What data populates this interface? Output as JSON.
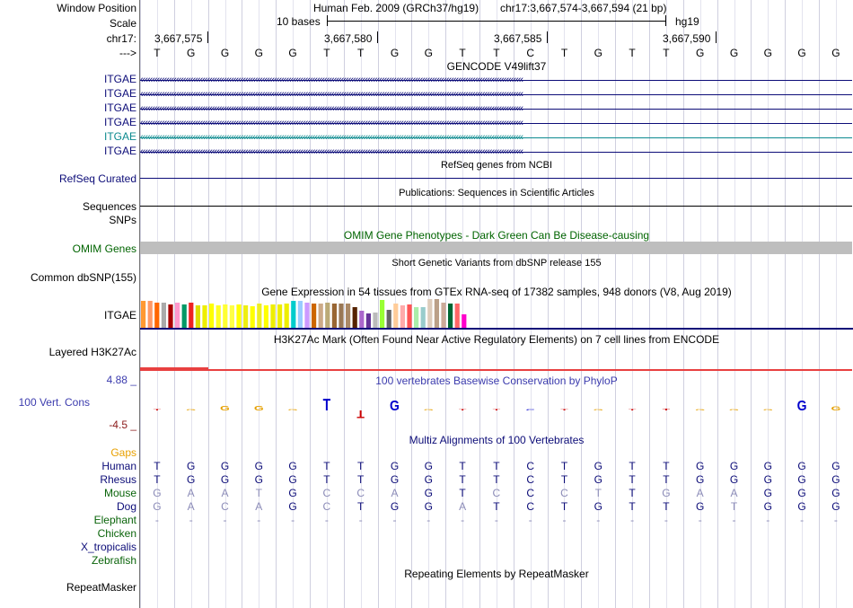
{
  "labels": {
    "window_position": "Window Position",
    "scale": "Scale",
    "chrom": "chr17:",
    "strand": "--->",
    "refseq": "RefSeq Curated",
    "sequences": "Sequences",
    "snps": "SNPs",
    "omim": "OMIM Genes",
    "common_dbsnp": "Common dbSNP(155)",
    "itgae_expr": "ITGAE",
    "h3k27ac": "Layered H3K27Ac",
    "cons_max": "4.88 _",
    "cons_label": "100 Vert. Cons",
    "cons_min": "-4.5 _",
    "gaps": "Gaps",
    "repeatmasker": "RepeatMasker"
  },
  "header": {
    "assembly": "Human Feb. 2009 (GRCh37/hg19)",
    "position": "chr17:3,667,574-3,667,594 (21 bp)",
    "scale_text": "10 bases",
    "db": "hg19",
    "ticks": [
      "3,667,575",
      "3,667,580",
      "3,667,585",
      "3,667,590"
    ]
  },
  "sequence": [
    "T",
    "G",
    "G",
    "G",
    "G",
    "T",
    "T",
    "G",
    "G",
    "T",
    "T",
    "C",
    "T",
    "G",
    "T",
    "T",
    "G",
    "G",
    "G",
    "G",
    "G"
  ],
  "gencode": {
    "title": "GENCODE V49lift37",
    "transcripts": [
      {
        "name": "ITGAE",
        "color": "#0c0c78"
      },
      {
        "name": "ITGAE",
        "color": "#0c0c78"
      },
      {
        "name": "ITGAE",
        "color": "#0c0c78"
      },
      {
        "name": "ITGAE",
        "color": "#0c0c78"
      },
      {
        "name": "ITGAE",
        "color": "#0c8a8f"
      },
      {
        "name": "ITGAE",
        "color": "#0c0c78"
      }
    ]
  },
  "tracks": {
    "refseq_title": "RefSeq genes from NCBI",
    "publications_title": "Publications: Sequences in Scientific Articles",
    "omim_title": "OMIM Gene Phenotypes - Dark Green Can Be Disease-causing",
    "dbsnp_title": "Short Genetic Variants from dbSNP release 155",
    "gtex_title": "Gene Expression in 54 tissues from GTEx RNA-seq of 17382 samples, 948 donors (V8, Aug 2019)",
    "h3k27ac_title": "H3K27Ac Mark (Often Found Near Active Regulatory Elements) on 7 cell lines from ENCODE",
    "phylop_title": "100 vertebrates Basewise Conservation by PhyloP",
    "multiz_title": "Multiz Alignments of 100 Vertebrates",
    "repeat_title": "Repeating Elements by RepeatMasker"
  },
  "colors": {
    "navy": "#0c0c78",
    "teal": "#0c8a8f",
    "omim_green": "#006400",
    "omim_bar": "#bebebe",
    "gaps_orange": "#e8a000",
    "cons_blue": "#3c3cae",
    "cons_red": "#8b1a1a",
    "h3k27ac_red": "#e84040",
    "species_green": "#0a640a",
    "species_navy": "#0c0c78",
    "repeat_red": "#c84040"
  },
  "gtex": {
    "colors": [
      "#ff9933",
      "#ff9966",
      "#ff6600",
      "#aaaaaa",
      "#aa0000",
      "#ff99cc",
      "#009966",
      "#ee2222",
      "#dddd00",
      "#eeee00",
      "#ffff00",
      "#ffff22",
      "#ffff33",
      "#ffff44",
      "#ffff00",
      "#eeee11",
      "#ffff00",
      "#eeee22",
      "#ffff00",
      "#eeee00",
      "#eeee00",
      "#eeee00",
      "#00cccc",
      "#99ccff",
      "#cc99ff",
      "#cc6600",
      "#ccaa88",
      "#bbaa77",
      "#996633",
      "#997755",
      "#aa8866",
      "#552200",
      "#aa66cc",
      "#663399",
      "#bbbbbb",
      "#99ff33",
      "#666666",
      "#ffcc99",
      "#ffaaaa",
      "#ff5555",
      "#aaeeaa",
      "#99cccc",
      "#ddccbb",
      "#bba088",
      "#ccaa99",
      "#006633",
      "#ff6666",
      "#ff00cc"
    ],
    "values": [
      30,
      30,
      28,
      28,
      26,
      28,
      26,
      28,
      25,
      25,
      27,
      25,
      26,
      25,
      26,
      25,
      24,
      27,
      25,
      26,
      26,
      27,
      30,
      30,
      28,
      27,
      27,
      28,
      27,
      27,
      27,
      23,
      19,
      16,
      17,
      31,
      20,
      27,
      25,
      26,
      23,
      23,
      32,
      32,
      28,
      27,
      27,
      15
    ]
  },
  "phylop_scores": [
    0.1,
    0.1,
    0.5,
    0.5,
    0.1,
    1.2,
    -0.8,
    1.0,
    0.0,
    0.05,
    0.0,
    0.0,
    0.05,
    0.1,
    0.1,
    0.2,
    0.05,
    0.05,
    0.1,
    1.0,
    0.4
  ],
  "multiz": {
    "species": [
      {
        "name": "Human",
        "color": "#0c0c78",
        "bases": [
          "T",
          "G",
          "G",
          "G",
          "G",
          "T",
          "T",
          "G",
          "G",
          "T",
          "T",
          "C",
          "T",
          "G",
          "T",
          "T",
          "G",
          "G",
          "G",
          "G",
          "G"
        ]
      },
      {
        "name": "Rhesus",
        "color": "#0c0c78",
        "bases": [
          "T",
          "G",
          "G",
          "G",
          "G",
          "T",
          "T",
          "G",
          "G",
          "T",
          "T",
          "C",
          "T",
          "G",
          "T",
          "T",
          "G",
          "G",
          "G",
          "G",
          "G"
        ]
      },
      {
        "name": "Mouse",
        "color": "#0a640a",
        "bases": [
          "G",
          "A",
          "A",
          "T",
          "G",
          "C",
          "C",
          "A",
          "G",
          "T",
          "C",
          "C",
          "C",
          "T",
          "T",
          "G",
          "A",
          "A",
          "G",
          "G",
          "G"
        ]
      },
      {
        "name": "Dog",
        "color": "#0c0c78",
        "bases": [
          "G",
          "A",
          "C",
          "A",
          "G",
          "C",
          "T",
          "G",
          "G",
          "A",
          "T",
          "C",
          "T",
          "G",
          "T",
          "T",
          "G",
          "T",
          "G",
          "G",
          "G"
        ]
      },
      {
        "name": "Elephant",
        "color": "#0a640a",
        "bases": [
          "-",
          "-",
          "-",
          "-",
          "-",
          "-",
          "-",
          "-",
          "-",
          "-",
          "-",
          "-",
          "-",
          "-",
          "-",
          "-",
          "-",
          "-",
          "-",
          "-",
          "-"
        ]
      },
      {
        "name": "Chicken",
        "color": "#0a640a",
        "bases": []
      },
      {
        "name": "X_tropicalis",
        "color": "#0c0c78",
        "bases": []
      },
      {
        "name": "Zebrafish",
        "color": "#0a640a",
        "bases": []
      }
    ]
  }
}
